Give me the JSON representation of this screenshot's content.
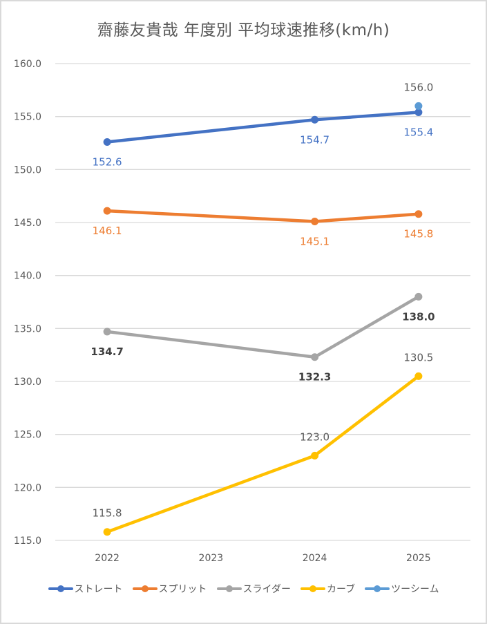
{
  "chart_data": {
    "type": "line",
    "title": "齋藤友貴哉 年度別 平均球速推移(km/h)",
    "xlabel": "",
    "ylabel": "",
    "categories": [
      "2022",
      "2023",
      "2024",
      "2025"
    ],
    "ylim": [
      115.0,
      160.0
    ],
    "ytick_step": 5.0,
    "yticks": [
      "115.0",
      "120.0",
      "125.0",
      "130.0",
      "135.0",
      "140.0",
      "145.0",
      "150.0",
      "155.0",
      "160.0"
    ],
    "grid": true,
    "legend_position": "bottom",
    "series": [
      {
        "name": "ストレート",
        "color": "#4472C4",
        "label_color": "#4472C4",
        "label_pos": "below",
        "values": [
          152.6,
          null,
          154.7,
          155.4
        ],
        "labels": [
          "152.6",
          null,
          "154.7",
          "155.4"
        ]
      },
      {
        "name": "スプリット",
        "color": "#ED7D31",
        "label_color": "#ED7D31",
        "label_pos": "below",
        "values": [
          146.1,
          null,
          145.1,
          145.8
        ],
        "labels": [
          "146.1",
          null,
          "145.1",
          "145.8"
        ]
      },
      {
        "name": "スライダー",
        "color": "#A5A5A5",
        "label_color": "#404040",
        "label_pos": "below",
        "values": [
          134.7,
          null,
          132.3,
          138.0
        ],
        "labels": [
          "134.7",
          null,
          "132.3",
          "138.0"
        ]
      },
      {
        "name": "カーブ",
        "color": "#FFC000",
        "label_color": "#595959",
        "label_pos": "above",
        "values": [
          115.8,
          null,
          123.0,
          130.5
        ],
        "labels": [
          "115.8",
          null,
          "123.0",
          "130.5"
        ]
      },
      {
        "name": "ツーシーム",
        "color": "#5B9BD5",
        "label_color": "#595959",
        "label_pos": "above",
        "values": [
          null,
          null,
          null,
          156.0
        ],
        "labels": [
          null,
          null,
          null,
          "156.0"
        ]
      }
    ]
  }
}
